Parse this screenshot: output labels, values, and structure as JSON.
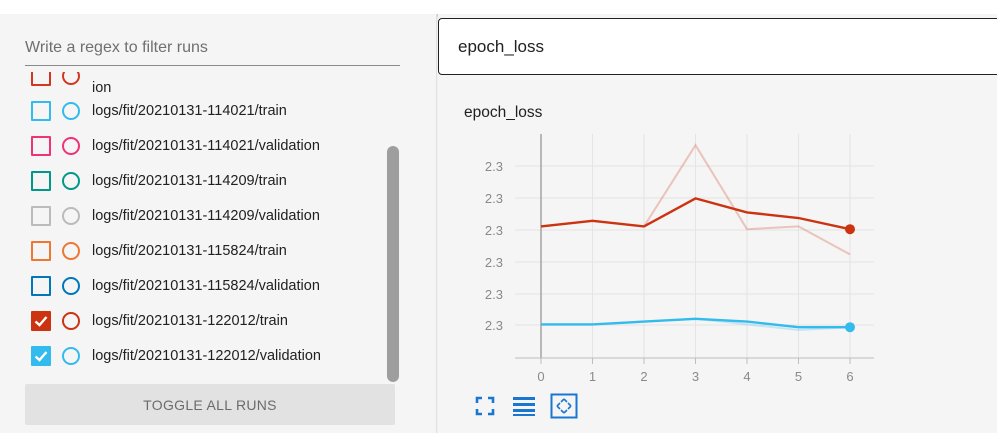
{
  "sidebar": {
    "filter_placeholder": "Write a regex to filter runs",
    "runs": [
      {
        "label": "ion",
        "color": "#d2381f",
        "checked": false
      },
      {
        "label": "logs/fit/20210131-114021/train",
        "color": "#33bbee",
        "checked": false
      },
      {
        "label": "logs/fit/20210131-114021/validation",
        "color": "#ee3377",
        "checked": false
      },
      {
        "label": "logs/fit/20210131-114209/train",
        "color": "#009988",
        "checked": false
      },
      {
        "label": "logs/fit/20210131-114209/validation",
        "color": "#bbbbbb",
        "checked": false
      },
      {
        "label": "logs/fit/20210131-115824/train",
        "color": "#ee7733",
        "checked": false
      },
      {
        "label": "logs/fit/20210131-115824/validation",
        "color": "#0077bb",
        "checked": false
      },
      {
        "label": "logs/fit/20210131-122012/train",
        "color": "#cc3311",
        "checked": true
      },
      {
        "label": "logs/fit/20210131-122012/validation",
        "color": "#33bbee",
        "checked": true
      }
    ],
    "toggle_label": "TOGGLE ALL RUNS"
  },
  "main": {
    "tag_filter_value": "epoch_loss",
    "card_title": "epoch_loss"
  },
  "chart_data": {
    "type": "line",
    "title": "epoch_loss",
    "x": [
      0,
      1,
      2,
      3,
      4,
      5,
      6
    ],
    "x_ticks": [
      "0",
      "1",
      "2",
      "3",
      "4",
      "5",
      "6"
    ],
    "y_ticks": [
      "2.3",
      "2.3",
      "2.3",
      "2.3",
      "2.3",
      "2.3"
    ],
    "grid": true,
    "series": [
      {
        "color": "#cc3311",
        "smoothed": [
          2.3025,
          2.3027,
          2.3025,
          2.3035,
          2.303,
          2.3028,
          2.3024
        ],
        "raw": [
          2.3025,
          2.3027,
          2.3025,
          2.3054,
          2.3024,
          2.3025,
          2.3015
        ]
      },
      {
        "color": "#33bbee",
        "smoothed": [
          2.299,
          2.299,
          2.2991,
          2.2992,
          2.2991,
          2.2989,
          2.2989
        ],
        "raw": [
          2.299,
          2.299,
          2.2991,
          2.2992,
          2.299,
          2.2988,
          2.2989
        ]
      }
    ]
  },
  "chart_toolbar": {
    "icons": [
      "fullscreen-icon",
      "toggle-y-log-icon",
      "fit-domain-icon"
    ],
    "accent": "#1976d2"
  }
}
